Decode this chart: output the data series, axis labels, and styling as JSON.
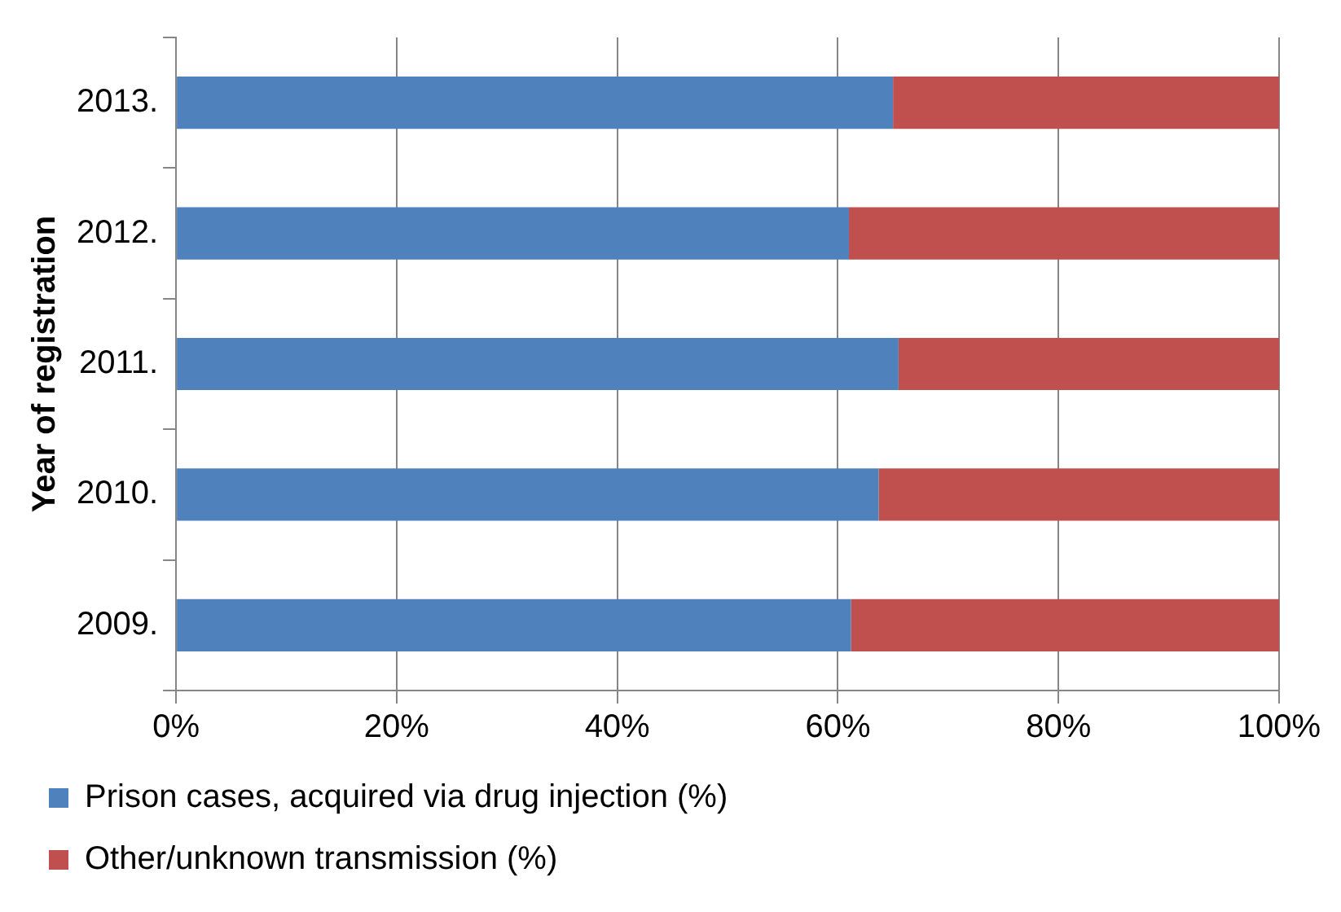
{
  "chart_data": {
    "type": "bar",
    "orientation": "horizontal",
    "stacked": true,
    "ylabel": "Year of registration",
    "categories": [
      "2013.",
      "2012.",
      "2011.",
      "2010.",
      "2009."
    ],
    "series": [
      {
        "name": "Prison cases, acquired via drug injection (%)",
        "color": "#4f81bd",
        "values": [
          65,
          61,
          65.5,
          63.7,
          61.2
        ]
      },
      {
        "name": "Other/unknown transmission (%)",
        "color": "#c0504d",
        "values": [
          35,
          39,
          34.5,
          36.3,
          38.8
        ]
      }
    ],
    "xlim": [
      0,
      100
    ],
    "xticks": [
      {
        "value": 0,
        "label": "0%"
      },
      {
        "value": 20,
        "label": "20%"
      },
      {
        "value": 40,
        "label": "40%"
      },
      {
        "value": 60,
        "label": "60%"
      },
      {
        "value": 80,
        "label": "80%"
      },
      {
        "value": 100,
        "label": "100%"
      }
    ],
    "grid": "x",
    "legend": "bottom"
  }
}
